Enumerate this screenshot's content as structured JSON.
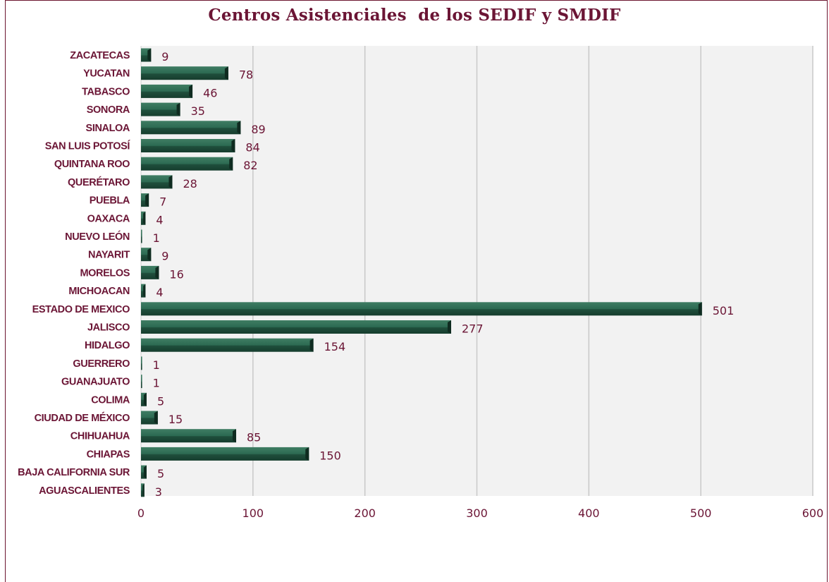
{
  "chart_data": {
    "type": "bar",
    "orientation": "horizontal",
    "title": "Centros Asistenciales  de los SEDIF y SMDIF",
    "xlabel": "",
    "ylabel": "",
    "xlim": [
      0,
      600
    ],
    "ticks": [
      "0",
      "100",
      "200",
      "300",
      "400",
      "500",
      "600"
    ],
    "grid": true,
    "legend": "none",
    "bar_color": "#245a45",
    "plot_background": "#f2f2f2",
    "text_color": "#6b1535",
    "categories": [
      "ZACATECAS",
      "YUCATAN",
      "TABASCO",
      "SONORA",
      "SINALOA",
      "SAN LUIS POTOSÍ",
      "QUINTANA ROO",
      "QUERÉTARO",
      "PUEBLA",
      "OAXACA",
      "NUEVO LEÓN",
      "NAYARIT",
      "MORELOS",
      "MICHOACAN",
      "ESTADO DE MEXICO",
      "JALISCO",
      "HIDALGO",
      "GUERRERO",
      "GUANAJUATO",
      "COLIMA",
      "CIUDAD DE MÉXICO",
      "CHIHUAHUA",
      "CHIAPAS",
      "BAJA CALIFORNIA SUR",
      "AGUASCALIENTES"
    ],
    "values": [
      9,
      78,
      46,
      35,
      89,
      84,
      82,
      28,
      7,
      4,
      1,
      9,
      16,
      4,
      501,
      277,
      154,
      1,
      1,
      5,
      15,
      85,
      150,
      5,
      3
    ]
  }
}
